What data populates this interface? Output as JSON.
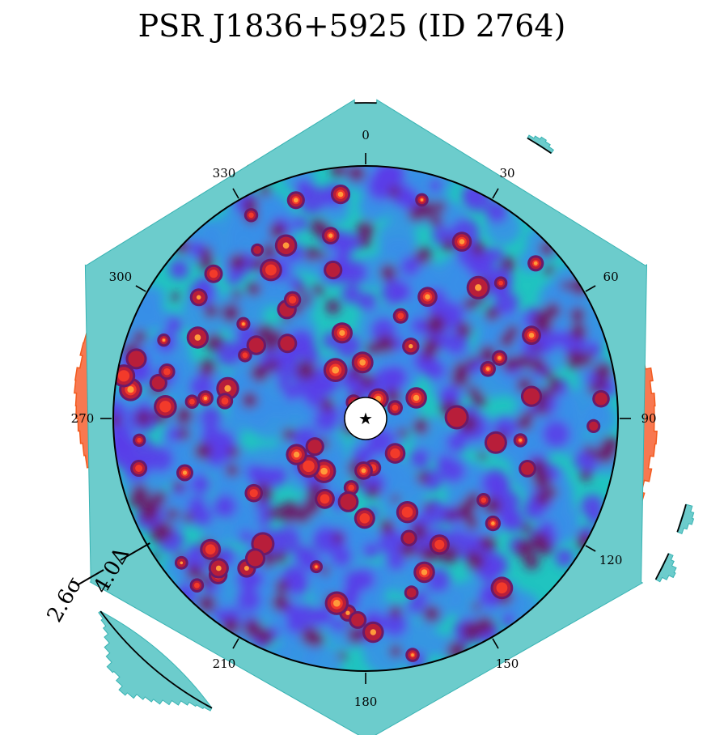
{
  "title": "PSR J1836+5925 (ID 2764)",
  "chart_data": {
    "type": "heatmap",
    "projection": "polar",
    "title": "PSR J1836+5925 (ID 2764)",
    "center_marker": "star-icon",
    "angle_ticks": [
      {
        "deg": 0,
        "label": "0"
      },
      {
        "deg": 30,
        "label": "330"
      },
      {
        "deg": 60,
        "label": "300"
      },
      {
        "deg": 90,
        "label": "270"
      },
      {
        "deg": 150,
        "label": "210"
      },
      {
        "deg": 180,
        "label": "180"
      },
      {
        "deg": 210,
        "label": "150"
      },
      {
        "deg": 240,
        "label": "120"
      },
      {
        "deg": 270,
        "label": "90"
      },
      {
        "deg": 300,
        "label": "60"
      },
      {
        "deg": 330,
        "label": "30"
      }
    ],
    "scale_markers": [
      {
        "label": "4.0Δ",
        "angle_deg": 120
      },
      {
        "label": "2.6σ",
        "angle_deg": 120
      }
    ],
    "colors": {
      "outer_histogram": "#f87850",
      "outer_histogram_edge": "#f25a1e",
      "teal_histogram": "#6ccccc",
      "teal_edge": "#39b3b3",
      "colormap": [
        "#20c4c0",
        "#3a8ee8",
        "#5a3ee8",
        "#6a1a6a",
        "#b81e3a",
        "#f23a2a",
        "#ff9a3a",
        "#ffd060"
      ]
    }
  }
}
